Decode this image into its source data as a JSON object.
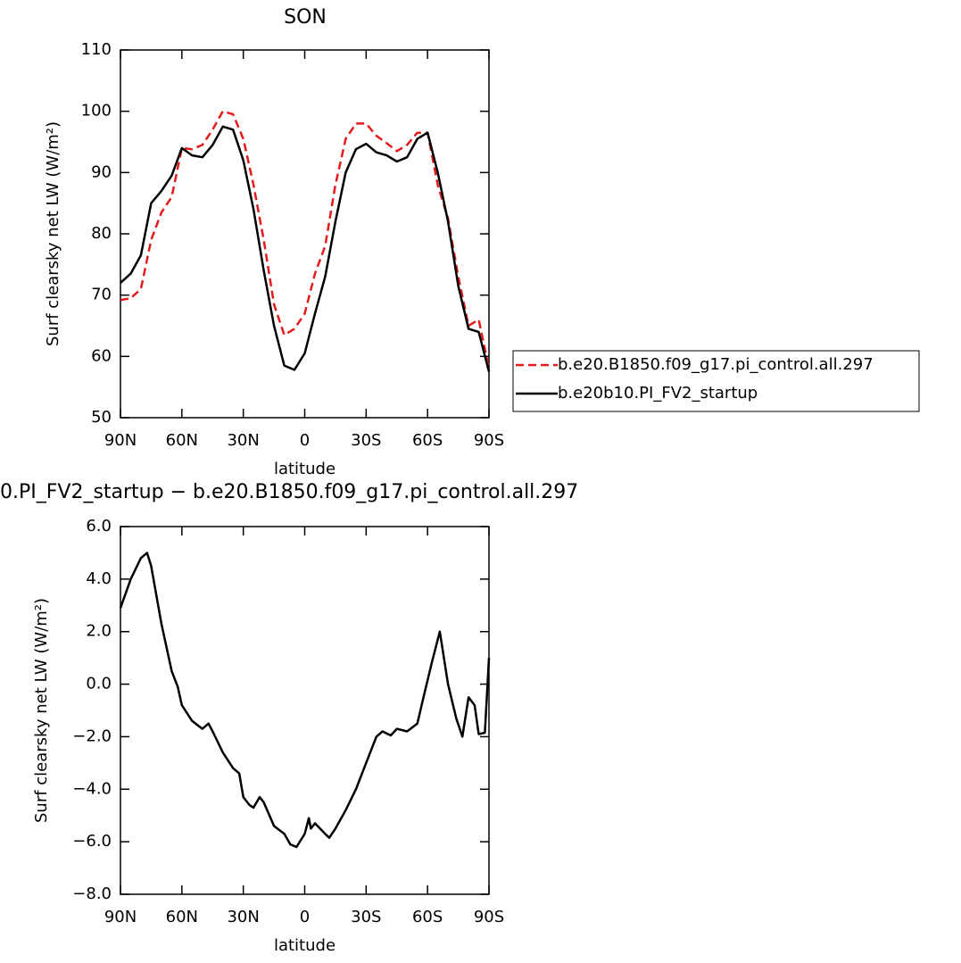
{
  "chart_data": [
    {
      "type": "line",
      "title": "SON",
      "xlabel": "latitude",
      "ylabel": "Surf clearsky net LW (W/m²)",
      "x": [
        90,
        85,
        80,
        75,
        70,
        65,
        60,
        55,
        50,
        45,
        40,
        35,
        30,
        25,
        20,
        15,
        10,
        5,
        0,
        -5,
        -10,
        -15,
        -20,
        -25,
        -30,
        -35,
        -40,
        -45,
        -50,
        -55,
        -60,
        -65,
        -70,
        -75,
        -80,
        -85,
        -90
      ],
      "series": [
        {
          "name": "b.e20.B1850.f09_g17.pi_control.all.297",
          "color": "#e41a1c",
          "dash": true,
          "values": [
            69.2,
            69.5,
            71,
            79,
            83.5,
            86,
            94,
            93.8,
            94.5,
            97,
            100,
            99.5,
            95.5,
            88,
            79,
            68.5,
            63.5,
            64.5,
            67,
            73.5,
            78,
            88,
            95.5,
            98,
            98,
            96,
            94.8,
            93.5,
            94.5,
            96.5,
            96.5,
            88,
            82.5,
            73,
            65,
            66,
            58
          ]
        },
        {
          "name": "b.e20b10.PI_FV2_startup",
          "color": "#000000",
          "dash": false,
          "values": [
            72,
            73.5,
            76.5,
            85,
            87,
            89.5,
            94,
            92.8,
            92.5,
            94.5,
            97.5,
            97,
            92,
            84,
            74,
            65,
            58.5,
            57.8,
            60.5,
            67,
            73,
            82,
            90,
            93.8,
            94.7,
            93.3,
            92.8,
            91.8,
            92.5,
            95.5,
            96.5,
            90,
            82,
            71.5,
            64.5,
            64,
            57.5
          ]
        }
      ],
      "xlim": [
        90,
        -90
      ],
      "xticks": [
        {
          "value": 90,
          "label": "90N"
        },
        {
          "value": 60,
          "label": "60N"
        },
        {
          "value": 30,
          "label": "30N"
        },
        0,
        {
          "value": -30,
          "label": "30S"
        },
        {
          "value": -60,
          "label": "60S"
        },
        {
          "value": -90,
          "label": "90S"
        }
      ],
      "ylim": [
        50,
        110
      ],
      "yticks": [
        50,
        60,
        70,
        80,
        90,
        100,
        110
      ],
      "legend": "right"
    },
    {
      "type": "line",
      "title": "0.PI_FV2_startup − b.e20.B1850.f09_g17.pi_control.all.297",
      "xlabel": "latitude",
      "ylabel": "Surf clearsky net LW (W/m²)",
      "x": [
        90,
        85,
        80,
        77,
        75,
        70,
        65,
        62,
        60,
        55,
        50,
        47,
        45,
        40,
        35,
        32,
        30,
        27,
        25,
        22,
        20,
        15,
        10,
        7,
        4,
        0,
        -2,
        -3,
        -5,
        -10,
        -12,
        -15,
        -20,
        -25,
        -30,
        -35,
        -38,
        -42,
        -45,
        -50,
        -55,
        -58,
        -62,
        -66,
        -70,
        -74,
        -77,
        -80,
        -83,
        -85,
        -88,
        -90
      ],
      "color": "#000000",
      "values": [
        2.9,
        4.0,
        4.8,
        5.0,
        4.5,
        2.3,
        0.5,
        -0.1,
        -0.8,
        -1.4,
        -1.7,
        -1.5,
        -1.8,
        -2.6,
        -3.2,
        -3.4,
        -4.3,
        -4.6,
        -4.7,
        -4.3,
        -4.5,
        -5.4,
        -5.7,
        -6.1,
        -6.2,
        -5.7,
        -5.1,
        -5.5,
        -5.3,
        -5.7,
        -5.85,
        -5.5,
        -4.8,
        -4.0,
        -3.0,
        -2.0,
        -1.8,
        -1.95,
        -1.7,
        -1.8,
        -1.5,
        -0.5,
        0.8,
        2.0,
        0.0,
        -1.3,
        -2.0,
        -0.5,
        -0.8,
        -1.9,
        -1.85,
        1.0
      ],
      "xlim": [
        90,
        -90
      ],
      "xticks": [
        {
          "value": 90,
          "label": "90N"
        },
        {
          "value": 60,
          "label": "60N"
        },
        {
          "value": 30,
          "label": "30N"
        },
        0,
        {
          "value": -30,
          "label": "30S"
        },
        {
          "value": -60,
          "label": "60S"
        },
        {
          "value": -90,
          "label": "90S"
        }
      ],
      "ylim": [
        -8,
        6
      ],
      "yticks": [
        {
          "value": -8,
          "label": "−8.0"
        },
        {
          "value": -6,
          "label": "−6.0"
        },
        {
          "value": -4,
          "label": "−4.0"
        },
        {
          "value": -2,
          "label": "−2.0"
        },
        {
          "value": 0,
          "label": "0.0"
        },
        {
          "value": 2,
          "label": "2.0"
        },
        {
          "value": 4,
          "label": "4.0"
        },
        {
          "value": 6,
          "label": "6.0"
        }
      ]
    }
  ]
}
